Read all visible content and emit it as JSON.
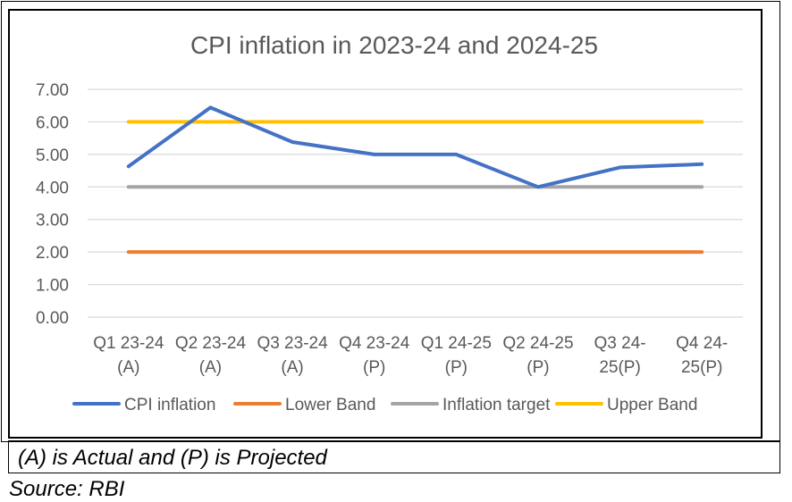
{
  "chart_data": {
    "type": "line",
    "title": "CPI inflation in 2023-24 and 2024-25",
    "xlabel": "",
    "ylabel": "",
    "ylim": [
      0,
      7
    ],
    "yticks": [
      "0.00",
      "1.00",
      "2.00",
      "3.00",
      "4.00",
      "5.00",
      "6.00",
      "7.00"
    ],
    "categories": [
      [
        "Q1 23-24",
        "(A)"
      ],
      [
        "Q2 23-24",
        "(A)"
      ],
      [
        "Q3 23-24",
        "(A)"
      ],
      [
        "Q4 23-24",
        "(P)"
      ],
      [
        "Q1 24-25",
        "(P)"
      ],
      [
        "Q2 24-25",
        "(P)"
      ],
      [
        "Q3 24-",
        "25(P)"
      ],
      [
        "Q4 24-",
        "25(P)"
      ]
    ],
    "grid": true,
    "legend_position": "bottom",
    "series": [
      {
        "name": "CPI inflation",
        "color": "#4472C4",
        "values": [
          4.63,
          6.44,
          5.38,
          5.0,
          5.0,
          4.0,
          4.6,
          4.7
        ]
      },
      {
        "name": "Lower Band",
        "color": "#ED7D31",
        "values": [
          2,
          2,
          2,
          2,
          2,
          2,
          2,
          2
        ]
      },
      {
        "name": "Inflation target",
        "color": "#A5A5A5",
        "values": [
          4,
          4,
          4,
          4,
          4,
          4,
          4,
          4
        ]
      },
      {
        "name": "Upper Band",
        "color": "#FFC000",
        "values": [
          6,
          6,
          6,
          6,
          6,
          6,
          6,
          6
        ]
      }
    ]
  },
  "note": "(A) is Actual and (P) is Projected",
  "source": "Source: RBI"
}
